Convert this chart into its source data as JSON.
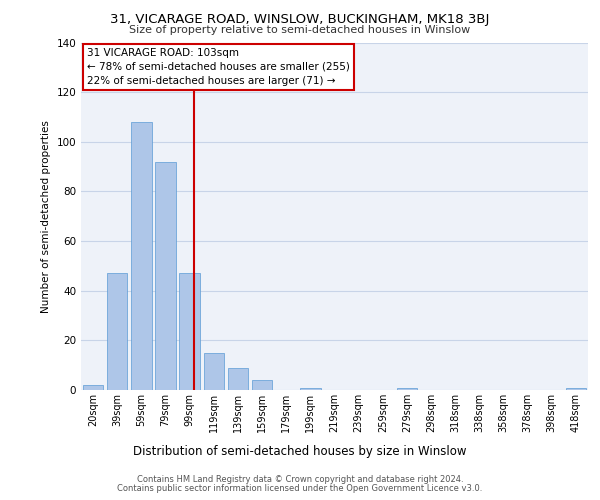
{
  "title": "31, VICARAGE ROAD, WINSLOW, BUCKINGHAM, MK18 3BJ",
  "subtitle": "Size of property relative to semi-detached houses in Winslow",
  "xlabel": "Distribution of semi-detached houses by size in Winslow",
  "ylabel": "Number of semi-detached properties",
  "categories": [
    "20sqm",
    "39sqm",
    "59sqm",
    "79sqm",
    "99sqm",
    "119sqm",
    "139sqm",
    "159sqm",
    "179sqm",
    "199sqm",
    "219sqm",
    "239sqm",
    "259sqm",
    "279sqm",
    "298sqm",
    "318sqm",
    "338sqm",
    "358sqm",
    "378sqm",
    "398sqm",
    "418sqm"
  ],
  "values": [
    2,
    47,
    108,
    92,
    47,
    15,
    9,
    4,
    0,
    1,
    0,
    0,
    0,
    1,
    0,
    0,
    0,
    0,
    0,
    0,
    1
  ],
  "bar_color": "#aec6e8",
  "bar_edge_color": "#5b9bd5",
  "property_label": "31 VICARAGE ROAD: 103sqm",
  "annotation_line1": "← 78% of semi-detached houses are smaller (255)",
  "annotation_line2": "22% of semi-detached houses are larger (71) →",
  "vline_color": "#cc0000",
  "box_edge_color": "#cc0000",
  "ylim": [
    0,
    140
  ],
  "yticks": [
    0,
    20,
    40,
    60,
    80,
    100,
    120,
    140
  ],
  "grid_color": "#c8d4e8",
  "background_color": "#eef2f9",
  "footer_line1": "Contains HM Land Registry data © Crown copyright and database right 2024.",
  "footer_line2": "Contains public sector information licensed under the Open Government Licence v3.0.",
  "title_fontsize": 9.5,
  "subtitle_fontsize": 8,
  "ylabel_fontsize": 7.5,
  "xlabel_fontsize": 8.5,
  "tick_fontsize": 7,
  "annot_fontsize": 7.5,
  "footer_fontsize": 6
}
